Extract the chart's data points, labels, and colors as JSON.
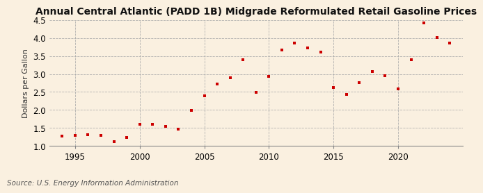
{
  "title": "Annual Central Atlantic (PADD 1B) Midgrade Reformulated Retail Gasoline Prices",
  "ylabel": "Dollars per Gallon",
  "source": "Source: U.S. Energy Information Administration",
  "background_color": "#faf0e0",
  "marker_color": "#cc0000",
  "years": [
    1994,
    1995,
    1996,
    1997,
    1998,
    1999,
    2000,
    2001,
    2002,
    2003,
    2004,
    2005,
    2006,
    2007,
    2008,
    2009,
    2010,
    2011,
    2012,
    2013,
    2014,
    2015,
    2016,
    2017,
    2018,
    2019,
    2020,
    2021,
    2022,
    2023,
    2024
  ],
  "prices": [
    1.27,
    1.3,
    1.32,
    1.3,
    1.13,
    1.24,
    1.61,
    1.6,
    1.55,
    1.47,
    1.98,
    2.4,
    2.73,
    2.9,
    3.4,
    2.49,
    2.93,
    3.67,
    3.85,
    3.73,
    3.6,
    2.63,
    2.44,
    2.76,
    3.07,
    2.95,
    2.58,
    3.4,
    4.42,
    4.02,
    3.85
  ],
  "xlim": [
    1993,
    2025
  ],
  "ylim": [
    1.0,
    4.5
  ],
  "xticks": [
    1995,
    2000,
    2005,
    2010,
    2015,
    2020
  ],
  "yticks": [
    1.0,
    1.5,
    2.0,
    2.5,
    3.0,
    3.5,
    4.0,
    4.5
  ],
  "grid_color": "#aaaaaa",
  "title_fontsize": 10,
  "label_fontsize": 8,
  "tick_fontsize": 8.5,
  "source_fontsize": 7.5
}
